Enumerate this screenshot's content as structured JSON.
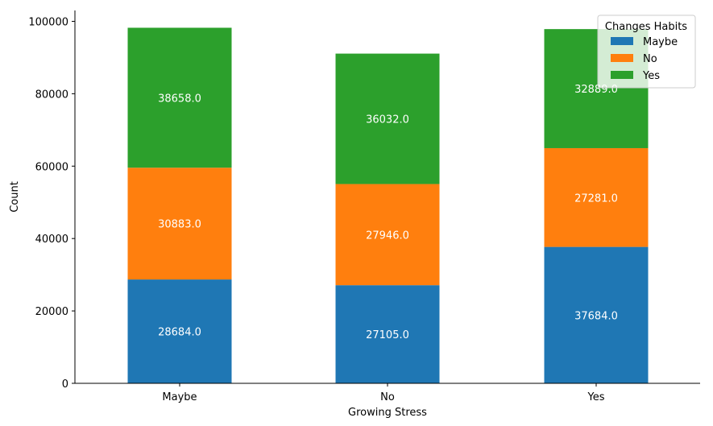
{
  "chart_data": {
    "type": "bar",
    "stacked": true,
    "categories": [
      "Maybe",
      "No",
      "Yes"
    ],
    "series": [
      {
        "name": "Maybe",
        "color": "#1f77b4",
        "values": [
          28684.0,
          27105.0,
          37684.0
        ]
      },
      {
        "name": "No",
        "color": "#ff7f0e",
        "values": [
          30883.0,
          27946.0,
          27281.0
        ]
      },
      {
        "name": "Yes",
        "color": "#2ca02c",
        "values": [
          38658.0,
          36032.0,
          32889.0
        ]
      }
    ],
    "data_labels": [
      [
        "28684.0",
        "27105.0",
        "37684.0"
      ],
      [
        "30883.0",
        "27946.0",
        "27281.0"
      ],
      [
        "38658.0",
        "36032.0",
        "32889.0"
      ]
    ],
    "xlabel": "Growing Stress",
    "ylabel": "Count",
    "ylim": [
      0,
      103000
    ],
    "yticks": [
      0,
      20000,
      40000,
      60000,
      80000,
      100000
    ],
    "ytick_labels": [
      "0",
      "20000",
      "40000",
      "60000",
      "80000",
      "100000"
    ],
    "legend": {
      "title": "Changes Habits",
      "position": "top-right"
    },
    "grid": false
  }
}
